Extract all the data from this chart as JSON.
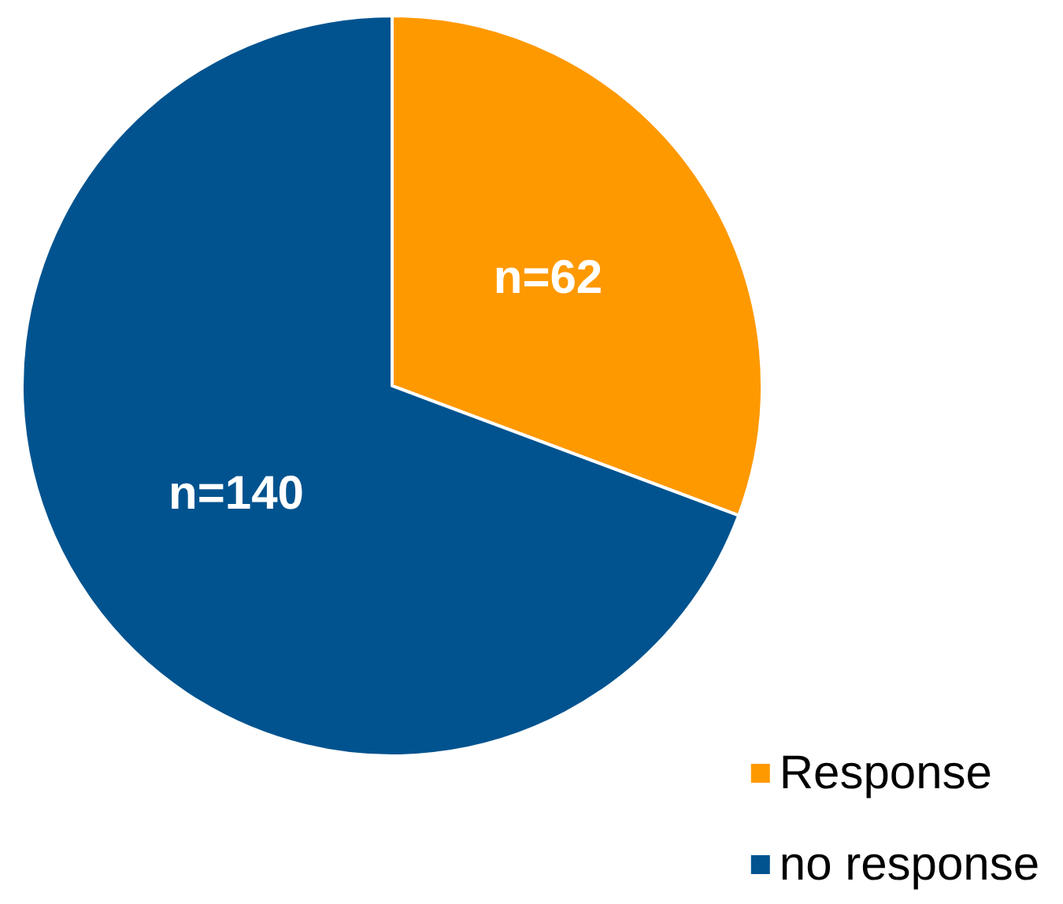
{
  "chart_data": {
    "type": "pie",
    "categories": [
      "Response",
      "no response"
    ],
    "values": [
      62,
      140
    ],
    "colors": [
      "#ff9900",
      "#00538f"
    ],
    "value_labels": [
      "n=62",
      "n=140"
    ],
    "legend": "bottom right"
  }
}
